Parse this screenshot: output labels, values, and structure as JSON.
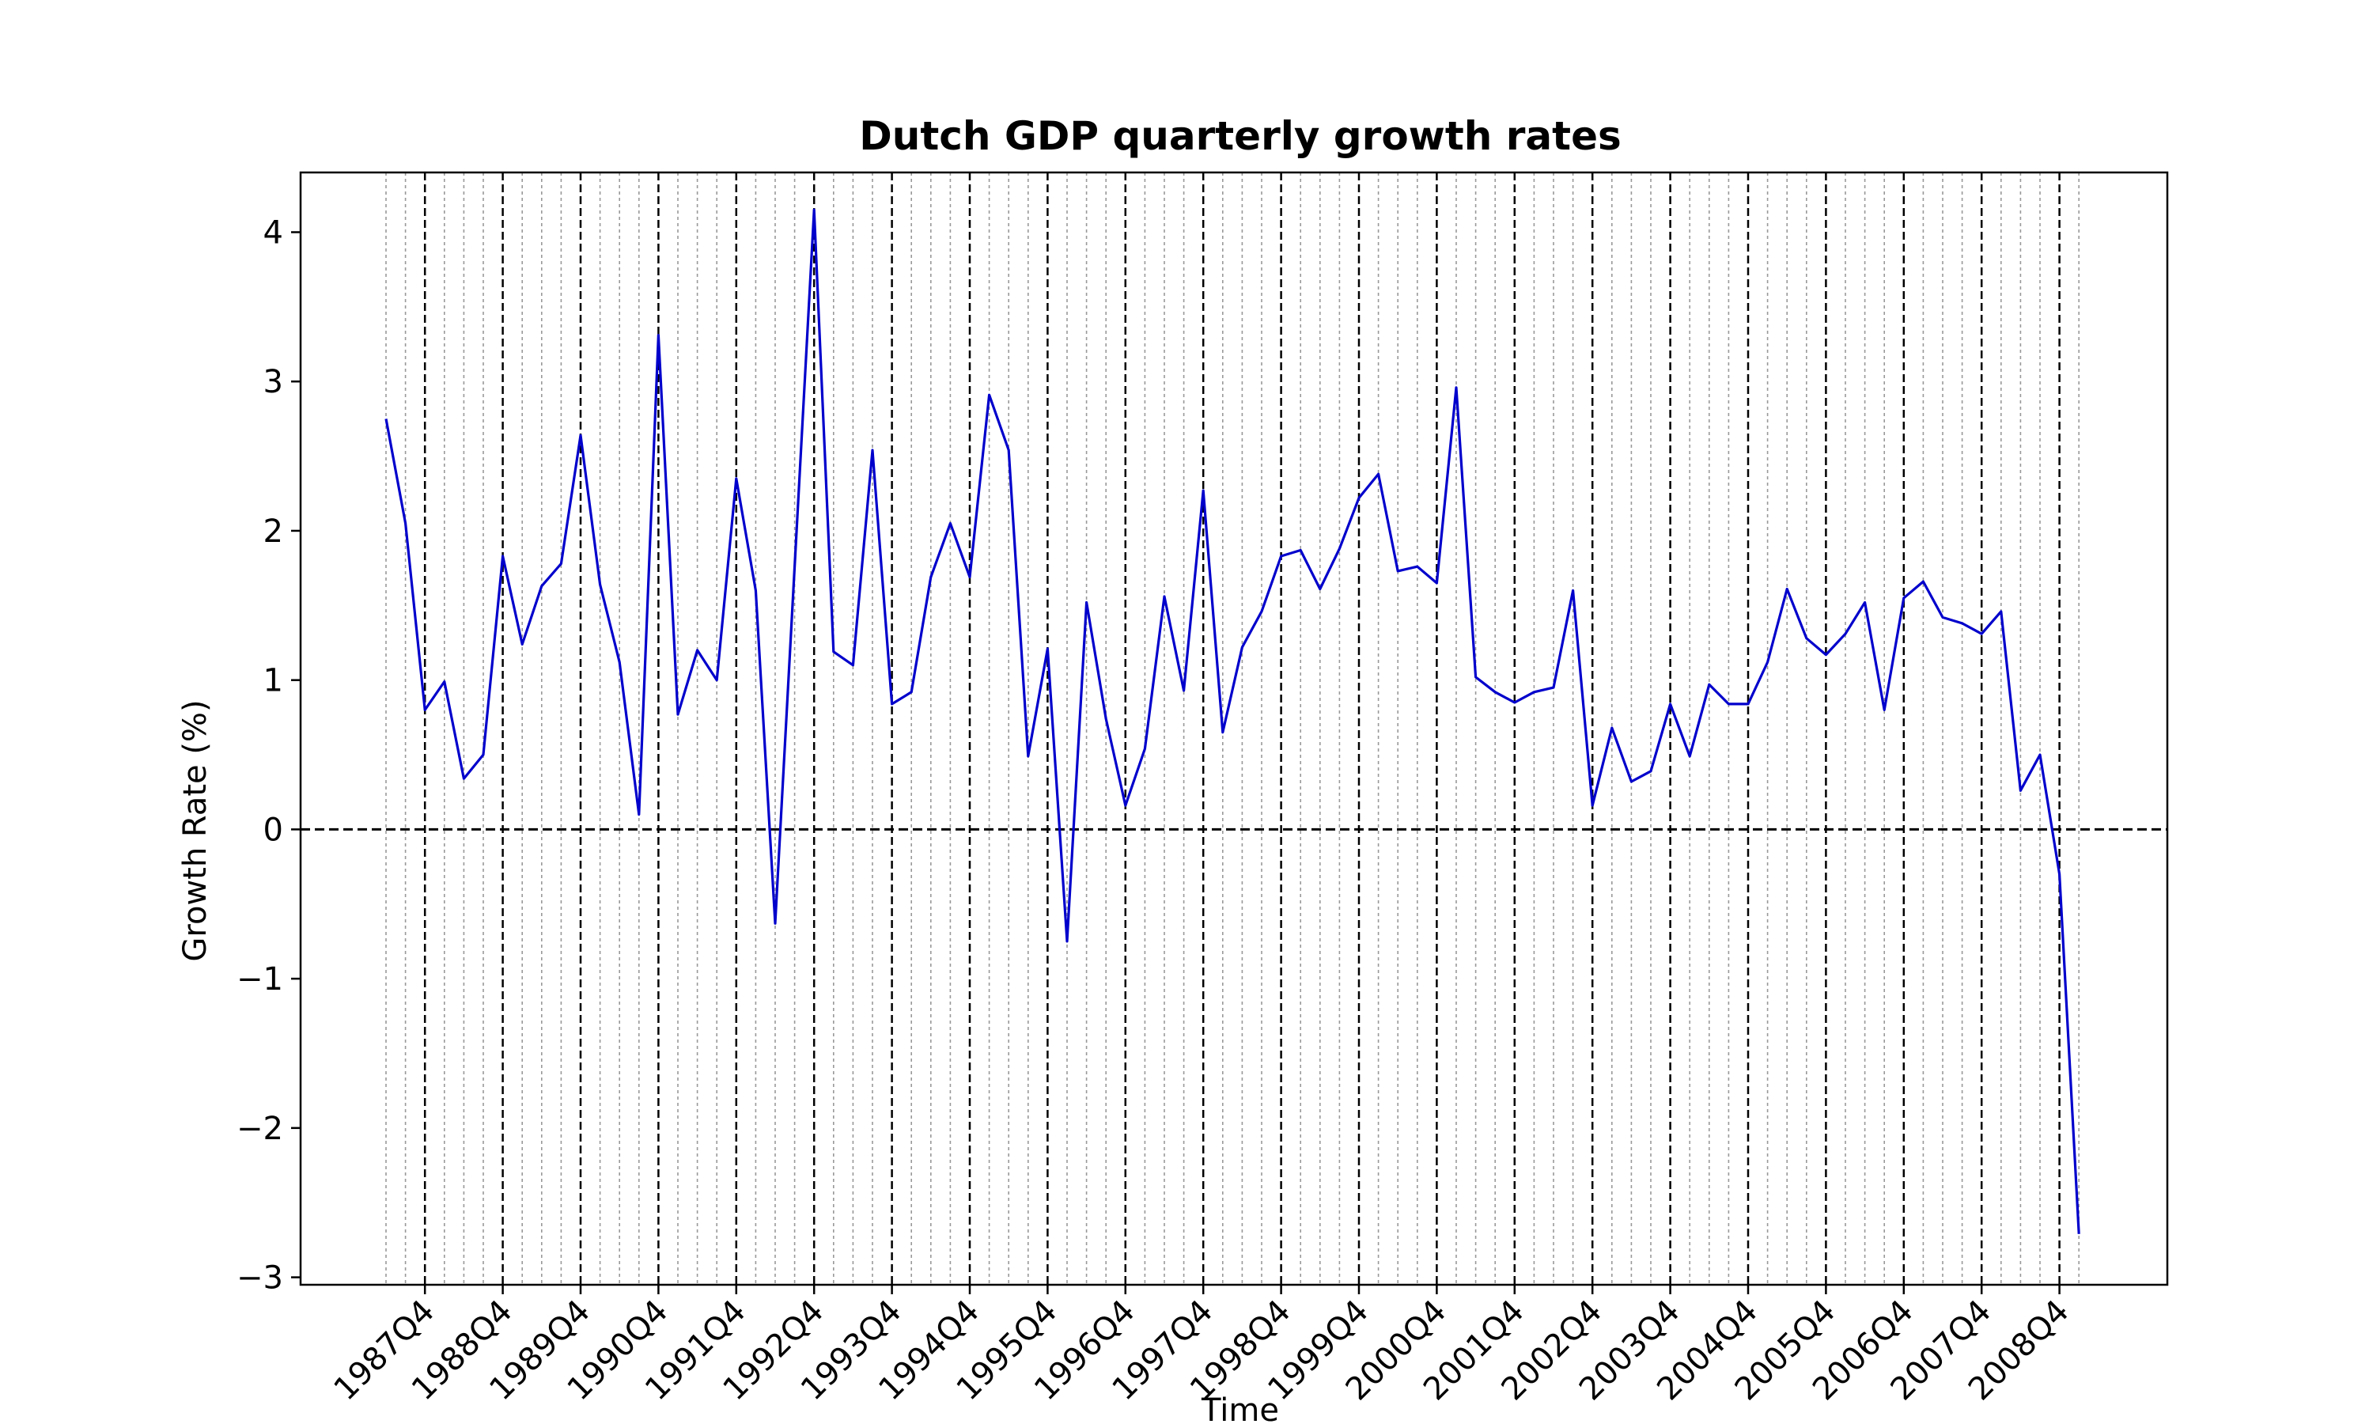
{
  "chart_data": {
    "type": "line",
    "title": "Dutch GDP quarterly growth rates",
    "xlabel": "Time",
    "ylabel": "Growth Rate (%)",
    "ylim": [
      -3.05,
      4.4
    ],
    "yticks": [
      -3,
      -2,
      -1,
      0,
      1,
      2,
      3,
      4
    ],
    "ytick_labels": [
      "−3",
      "−2",
      "−1",
      "0",
      "1",
      "2",
      "3",
      "4"
    ],
    "x_start": "1987Q2",
    "xtick_labels": [
      "1987Q4",
      "1988Q4",
      "1989Q4",
      "1990Q4",
      "1991Q4",
      "1992Q4",
      "1993Q4",
      "1994Q4",
      "1995Q4",
      "1996Q4",
      "1997Q4",
      "1998Q4",
      "1999Q4",
      "2000Q4",
      "2001Q4",
      "2002Q4",
      "2003Q4",
      "2004Q4",
      "2005Q4",
      "2006Q4",
      "2007Q4",
      "2008Q4"
    ],
    "reference_line_y": 0,
    "grid": "quarterly dotted gridlines, dashed yearly Q4 lines",
    "line_color": "#0000cc",
    "series": [
      {
        "values": [
          2.75,
          2.05,
          0.8,
          0.99,
          0.34,
          0.5,
          1.83,
          1.24,
          1.63,
          1.78,
          2.64,
          1.64,
          1.12,
          0.1,
          3.31,
          0.77,
          1.2,
          1.0,
          2.35,
          1.6,
          -0.63,
          1.76,
          4.15,
          1.19,
          1.1,
          2.54,
          0.84,
          0.92,
          1.69,
          2.05,
          1.69,
          2.91,
          2.54,
          0.49,
          1.21,
          -0.75,
          1.52,
          0.74,
          0.16,
          0.54,
          1.56,
          0.93,
          2.27,
          0.65,
          1.22,
          1.46,
          1.83,
          1.87,
          1.61,
          1.88,
          2.22,
          2.38,
          1.73,
          1.76,
          1.65,
          2.96,
          1.02,
          0.92,
          0.85,
          0.92,
          0.95,
          1.6,
          0.16,
          0.68,
          0.32,
          0.39,
          0.84,
          0.49,
          0.97,
          0.84,
          0.84,
          1.12,
          1.61,
          1.28,
          1.17,
          1.31,
          1.52,
          0.8,
          1.55,
          1.66,
          1.42,
          1.38,
          1.31,
          1.46,
          0.26,
          0.5,
          -0.3,
          -2.71
        ]
      }
    ]
  }
}
